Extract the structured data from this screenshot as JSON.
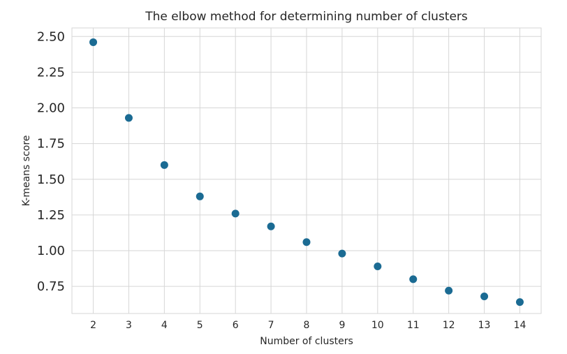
{
  "chart_data": {
    "type": "scatter",
    "title": "The elbow method for determining number of clusters",
    "xlabel": "Number of clusters",
    "ylabel": "K-means score",
    "xlim": [
      1.4,
      14.6
    ],
    "ylim": [
      0.56,
      2.56
    ],
    "x_ticks": [
      2,
      3,
      4,
      5,
      6,
      7,
      8,
      9,
      10,
      11,
      12,
      13,
      14
    ],
    "y_ticks": [
      0.75,
      1.0,
      1.25,
      1.5,
      1.75,
      2.0,
      2.25,
      2.5
    ],
    "y_tick_labels": [
      "0.75",
      "1.00",
      "1.25",
      "1.50",
      "1.75",
      "2.00",
      "2.25",
      "2.50"
    ],
    "grid": true,
    "series": [
      {
        "x": [
          2,
          3,
          4,
          5,
          6,
          7,
          8,
          9,
          10,
          11,
          12,
          13,
          14
        ],
        "y": [
          2.46,
          1.93,
          1.6,
          1.38,
          1.26,
          1.17,
          1.06,
          0.98,
          0.89,
          0.8,
          0.72,
          0.68,
          0.64
        ],
        "color": "#1b6b93"
      }
    ]
  }
}
